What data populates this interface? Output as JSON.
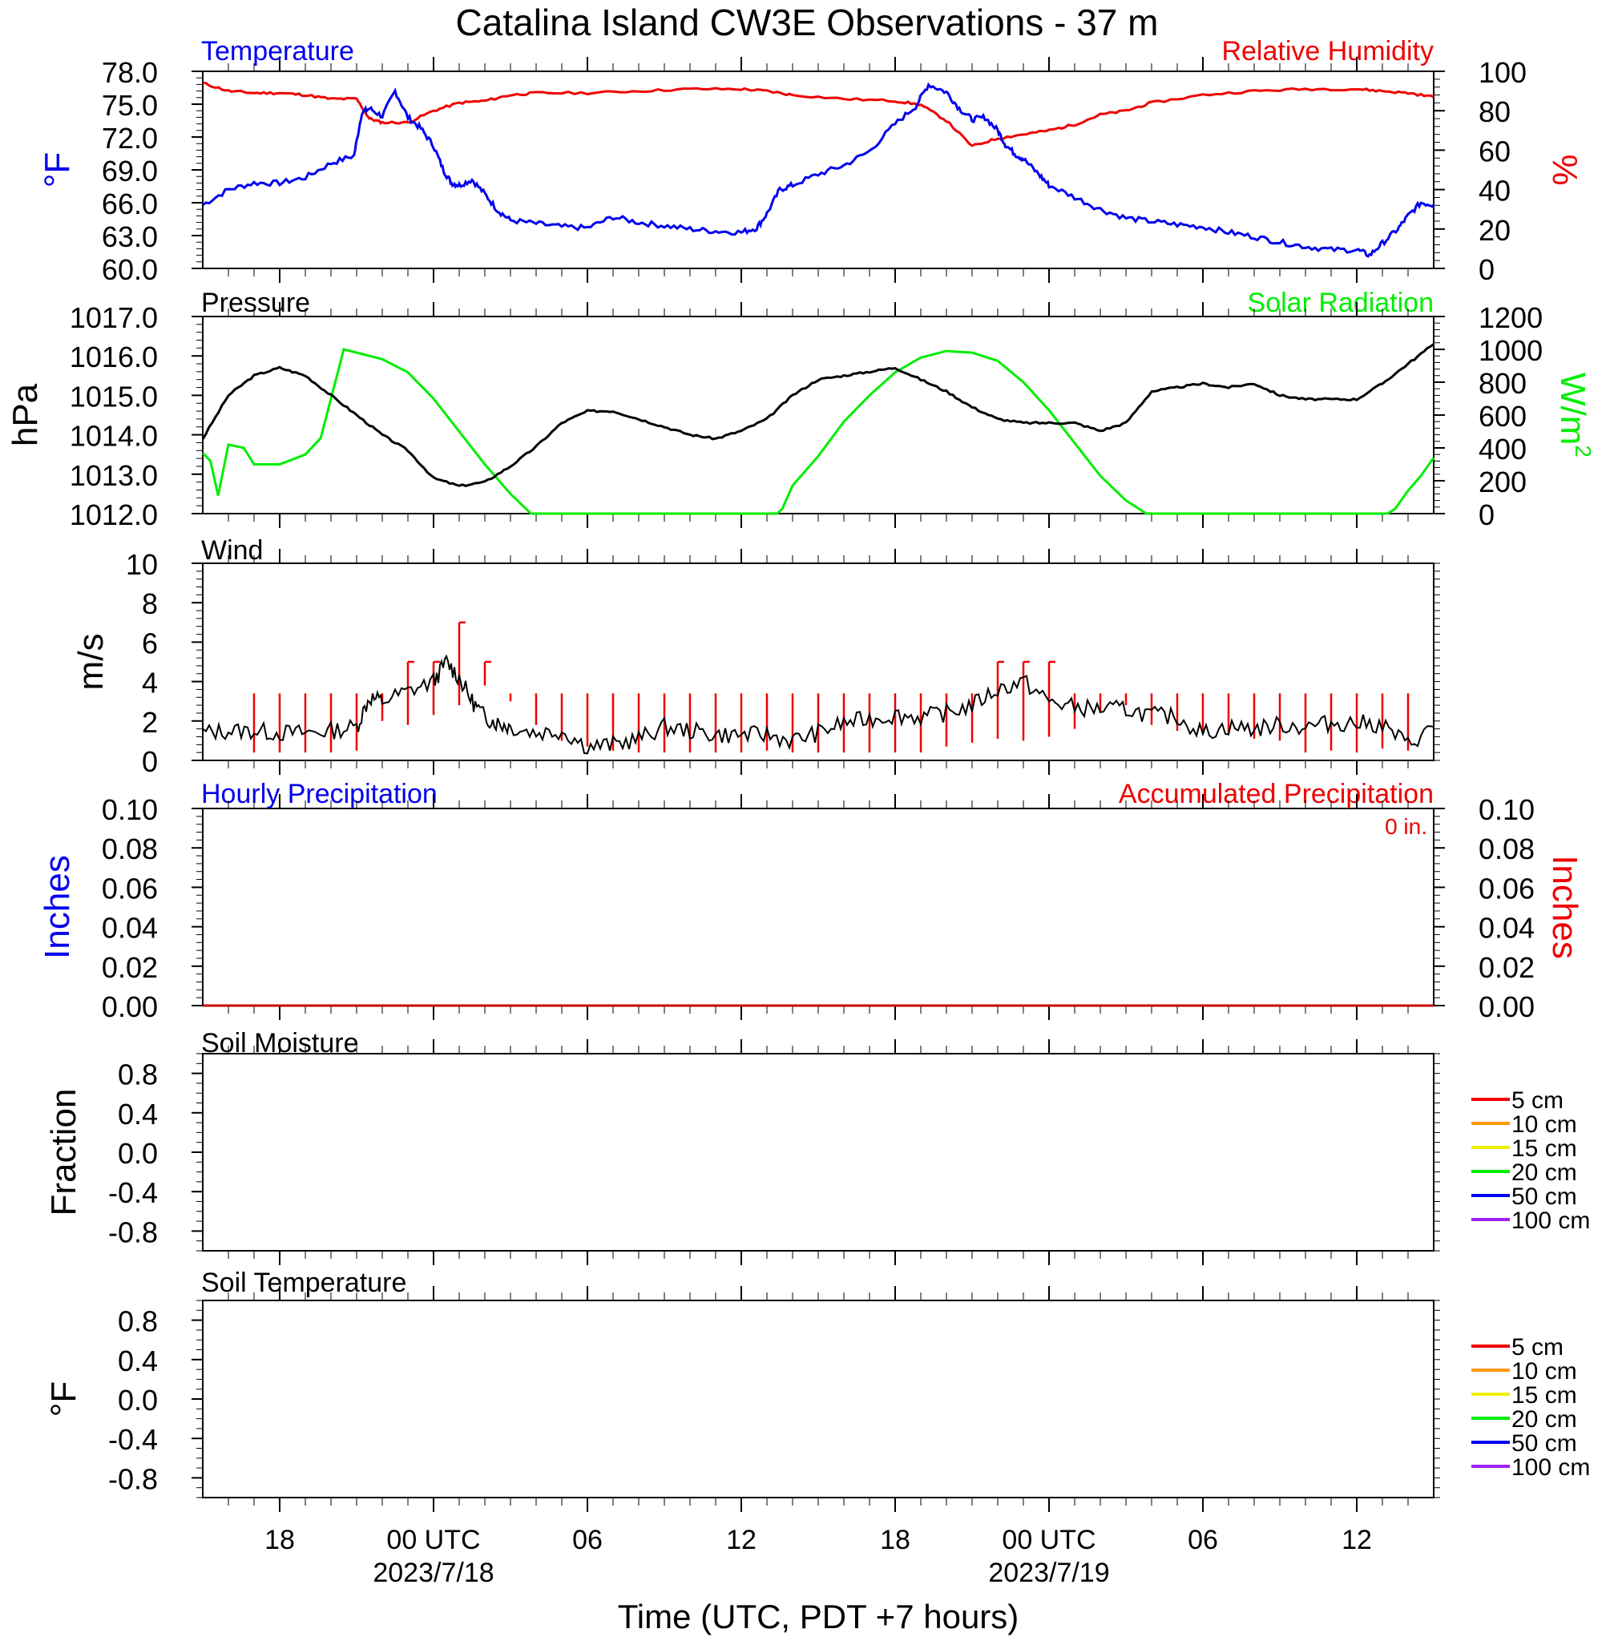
{
  "title": "Catalina Island CW3E Observations - 37 m",
  "x_axis": {
    "label": "Time (UTC, PDT +7 hours)",
    "ticks": [
      {
        "hour": 18,
        "label": "18",
        "date": ""
      },
      {
        "hour": 24,
        "label": "00 UTC",
        "date": "2023/7/18"
      },
      {
        "hour": 30,
        "label": "06",
        "date": ""
      },
      {
        "hour": 36,
        "label": "12",
        "date": ""
      },
      {
        "hour": 42,
        "label": "18",
        "date": ""
      },
      {
        "hour": 48,
        "label": "00 UTC",
        "date": "2023/7/19"
      },
      {
        "hour": 54,
        "label": "06",
        "date": ""
      },
      {
        "hour": 60,
        "label": "12",
        "date": ""
      }
    ]
  },
  "panels": {
    "temp_rh": {
      "left_title": "Temperature",
      "right_title": "Relative Humidity",
      "left_unit": "°F",
      "right_unit": "%",
      "left_ticks": [
        "78.0",
        "75.0",
        "72.0",
        "69.0",
        "66.0",
        "63.0",
        "60.0"
      ],
      "right_ticks": [
        "100",
        "80",
        "60",
        "40",
        "20",
        "0"
      ]
    },
    "pressure_solar": {
      "left_title": "Pressure",
      "right_title": "Solar Radiation",
      "left_unit": "hPa",
      "right_unit": "W/m",
      "right_unit_sup": "2",
      "left_ticks": [
        "1017.0",
        "1016.0",
        "1015.0",
        "1014.0",
        "1013.0",
        "1012.0"
      ],
      "right_ticks": [
        "1200",
        "1000",
        "800",
        "600",
        "400",
        "200",
        "0"
      ]
    },
    "wind": {
      "title": "Wind",
      "unit": "m/s",
      "ticks": [
        "10",
        "8",
        "6",
        "4",
        "2",
        "0"
      ]
    },
    "precip": {
      "left_title": "Hourly Precipitation",
      "right_title": "Accumulated Precipitation",
      "accum_label": "0 in.",
      "left_unit": "Inches",
      "right_unit": "Inches",
      "left_ticks": [
        "0.10",
        "0.08",
        "0.06",
        "0.04",
        "0.02",
        "0.00"
      ],
      "right_ticks": [
        "0.10",
        "0.08",
        "0.06",
        "0.04",
        "0.02",
        "0.00"
      ]
    },
    "soil_moisture": {
      "title": "Soil Moisture",
      "unit": "Fraction",
      "ticks": [
        "0.8",
        "0.4",
        "0.0",
        "-0.4",
        "-0.8"
      ],
      "legend": [
        "5 cm",
        "10 cm",
        "15 cm",
        "20 cm",
        "50 cm",
        "100 cm"
      ]
    },
    "soil_temp": {
      "title": "Soil Temperature",
      "unit": "°F",
      "ticks": [
        "0.8",
        "0.4",
        "0.0",
        "-0.4",
        "-0.8"
      ],
      "legend": [
        "5 cm",
        "10 cm",
        "15 cm",
        "20 cm",
        "50 cm",
        "100 cm"
      ]
    }
  },
  "colors": {
    "temperature": "#0000ee",
    "humidity": "#ee0000",
    "pressure": "#000000",
    "solar": "#00ee00",
    "wind": "#000000",
    "wind_barb": "#ee0000",
    "precip_accum": "#ee0000",
    "legend": [
      "#ee0000",
      "#ff9900",
      "#eeee00",
      "#00ee00",
      "#0000ee",
      "#a020f0"
    ]
  },
  "chart_data": [
    {
      "type": "line",
      "panel": "temp_rh",
      "x_unit": "hours since 2023-07-17 00 UTC",
      "xlim": [
        15,
        63
      ],
      "series": [
        {
          "name": "Temperature",
          "axis": "left",
          "ylim": [
            60,
            78
          ],
          "x": [
            15,
            16,
            17,
            18,
            19,
            20,
            20.9,
            21.2,
            21.5,
            22,
            22.5,
            23,
            23.5,
            24,
            24.4,
            24.7,
            25,
            25.5,
            26,
            26.5,
            27,
            28,
            29,
            30,
            31,
            32,
            33,
            34,
            35,
            36,
            36.6,
            37,
            37.5,
            38,
            39,
            40,
            41,
            42,
            42.8,
            43.3,
            44,
            44.5,
            45,
            45.5,
            46,
            46.3,
            46.7,
            47,
            47.6,
            48,
            49,
            50,
            51,
            52,
            53,
            54,
            55,
            56,
            57,
            58,
            59,
            60,
            60.5,
            61,
            61.6,
            62,
            62.5,
            63
          ],
          "y": [
            65.8,
            67.2,
            67.8,
            67.8,
            68.3,
            69.6,
            70.3,
            74.2,
            74.6,
            73.9,
            76.2,
            73.8,
            72.8,
            71.2,
            68.9,
            67.8,
            67.6,
            68.1,
            66.8,
            65.3,
            64.4,
            64.1,
            63.8,
            63.7,
            64.7,
            64.2,
            63.9,
            63.6,
            63.4,
            63.3,
            63.7,
            65.0,
            67.2,
            67.6,
            68.6,
            69.4,
            70.7,
            73.2,
            74.8,
            76.8,
            76.1,
            74.6,
            73.6,
            73.8,
            72.6,
            71.3,
            70.4,
            70.0,
            68.6,
            67.6,
            66.5,
            65.4,
            64.6,
            64.3,
            64.0,
            63.8,
            63.3,
            62.9,
            62.4,
            62.0,
            61.7,
            61.7,
            61.2,
            62.3,
            63.6,
            64.8,
            66.0,
            65.8
          ]
        },
        {
          "name": "Relative Humidity",
          "axis": "right",
          "ylim": [
            0,
            100
          ],
          "x": [
            15,
            16,
            17,
            18,
            19,
            20,
            21,
            21.5,
            22,
            23,
            24,
            25,
            26,
            27,
            28,
            30,
            32,
            34,
            36,
            37,
            38,
            40,
            42,
            43,
            44,
            45,
            46,
            47,
            48,
            49,
            50,
            51,
            52,
            54,
            56,
            58,
            60,
            61,
            62,
            63
          ],
          "y": [
            94,
            90,
            89,
            89,
            88,
            86,
            86,
            76,
            74,
            74,
            80,
            84,
            85,
            88,
            89,
            89,
            90,
            91,
            91,
            90,
            88,
            86,
            85,
            83,
            75,
            62,
            66,
            68,
            70,
            73,
            78,
            80,
            84,
            88,
            90,
            91,
            91,
            90,
            89,
            87
          ]
        }
      ]
    },
    {
      "type": "line",
      "panel": "pressure_solar",
      "x_unit": "hours since 2023-07-17 00 UTC",
      "xlim": [
        15,
        63
      ],
      "series": [
        {
          "name": "Pressure",
          "axis": "left",
          "ylim": [
            1012,
            1017
          ],
          "x": [
            15,
            16,
            17,
            18,
            19,
            20,
            21,
            22,
            23,
            24,
            25,
            26,
            27,
            28,
            29,
            30,
            31,
            32,
            33,
            34,
            35,
            36,
            37,
            38,
            39,
            40,
            41,
            42,
            43,
            44,
            45,
            46,
            47,
            48,
            49,
            50,
            51,
            52,
            53,
            54,
            55,
            56,
            57,
            58,
            59,
            60,
            61,
            62,
            63
          ],
          "y": [
            1013.9,
            1015.0,
            1015.5,
            1015.7,
            1015.5,
            1015.0,
            1014.5,
            1014.0,
            1013.6,
            1012.9,
            1012.7,
            1012.8,
            1013.2,
            1013.7,
            1014.3,
            1014.6,
            1014.6,
            1014.4,
            1014.2,
            1014.0,
            1013.9,
            1014.1,
            1014.4,
            1015.0,
            1015.4,
            1015.5,
            1015.6,
            1015.7,
            1015.4,
            1015.1,
            1014.7,
            1014.4,
            1014.3,
            1014.3,
            1014.3,
            1014.1,
            1014.3,
            1015.1,
            1015.2,
            1015.3,
            1015.2,
            1015.3,
            1015.0,
            1014.9,
            1014.9,
            1014.9,
            1015.3,
            1015.8,
            1016.3
          ]
        },
        {
          "name": "Solar Radiation",
          "axis": "right",
          "ylim": [
            0,
            1200
          ],
          "x": [
            15,
            15.3,
            15.6,
            16,
            16.6,
            17,
            18,
            19,
            19.6,
            20,
            20.5,
            21,
            22,
            23,
            24,
            25,
            26,
            27,
            27.8,
            28,
            30,
            34,
            36,
            37.4,
            37.6,
            38,
            39,
            40,
            41,
            42,
            43,
            44,
            45,
            46,
            47,
            48,
            49,
            50,
            51,
            51.8,
            52,
            56,
            58,
            60,
            61.2,
            61.5,
            62,
            62.5,
            63
          ],
          "y": [
            370,
            320,
            110,
            420,
            400,
            300,
            300,
            360,
            460,
            700,
            1000,
            980,
            940,
            860,
            700,
            500,
            300,
            120,
            0,
            0,
            0,
            0,
            0,
            0,
            30,
            170,
            350,
            560,
            720,
            860,
            950,
            990,
            980,
            930,
            800,
            630,
            430,
            230,
            80,
            0,
            0,
            0,
            0,
            0,
            0,
            30,
            140,
            230,
            340
          ]
        }
      ]
    },
    {
      "type": "line",
      "panel": "wind",
      "x_unit": "hours since 2023-07-17 00 UTC",
      "xlim": [
        15,
        63
      ],
      "ylim": [
        0,
        10
      ],
      "series": [
        {
          "name": "Wind",
          "x": [
            15,
            16,
            17,
            18,
            19,
            20,
            21,
            21.5,
            22,
            23,
            24,
            24.5,
            25,
            25.5,
            26,
            26.5,
            27,
            28,
            29,
            30,
            31,
            32,
            33,
            34,
            35,
            36,
            37,
            38,
            39,
            40,
            41,
            42,
            43,
            44,
            45,
            46,
            47,
            48,
            49,
            50,
            51,
            52,
            53,
            54,
            55,
            56,
            57,
            58,
            59,
            60,
            61,
            62,
            63
          ],
          "y": [
            1.4,
            1.5,
            1.5,
            1.4,
            1.4,
            1.5,
            1.7,
            3.2,
            3.0,
            3.5,
            4.0,
            5.0,
            4.2,
            3.0,
            2.2,
            1.9,
            1.7,
            1.4,
            1.5,
            0.7,
            0.8,
            1.1,
            1.7,
            1.5,
            1.3,
            1.3,
            1.3,
            1.0,
            1.4,
            1.9,
            2.1,
            2.3,
            2.2,
            2.4,
            2.8,
            3.6,
            4.0,
            3.0,
            2.7,
            2.6,
            2.6,
            2.3,
            2.2,
            1.4,
            1.7,
            1.6,
            1.8,
            1.7,
            1.9,
            1.9,
            1.8,
            0.8,
            1.7
          ]
        }
      ],
      "barbs": {
        "x": [
          17,
          18,
          19,
          20,
          21,
          22,
          23,
          24,
          25,
          26,
          27,
          28,
          29,
          30,
          31,
          32,
          33,
          34,
          35,
          36,
          37,
          38,
          39,
          40,
          41,
          42,
          43,
          44,
          45,
          46,
          47,
          48,
          49,
          50,
          51,
          52,
          53,
          54,
          55,
          56,
          57,
          58,
          59,
          60,
          61,
          62
        ],
        "speed": [
          2,
          2,
          2,
          2,
          2,
          4,
          5,
          5,
          7,
          5,
          3,
          2,
          2,
          2,
          2,
          2,
          2,
          2,
          2,
          2,
          2,
          2,
          2,
          2,
          2,
          2,
          2,
          2,
          2,
          5,
          5,
          5,
          4,
          4,
          4,
          2,
          2,
          2,
          2,
          2,
          2,
          2,
          2,
          2,
          2,
          2
        ]
      }
    },
    {
      "type": "line",
      "panel": "precip",
      "xlim": [
        15,
        63
      ],
      "ylim": [
        0,
        0.1
      ],
      "series": [
        {
          "name": "Hourly Precipitation",
          "x": [
            15,
            63
          ],
          "y": [
            0,
            0
          ]
        },
        {
          "name": "Accumulated Precipitation",
          "x": [
            15,
            63
          ],
          "y": [
            0,
            0
          ]
        }
      ]
    },
    {
      "type": "line",
      "panel": "soil_moisture",
      "xlim": [
        15,
        63
      ],
      "ylim": [
        -1,
        1
      ],
      "series": []
    },
    {
      "type": "line",
      "panel": "soil_temp",
      "xlim": [
        15,
        63
      ],
      "ylim": [
        -1,
        1
      ],
      "series": []
    }
  ]
}
